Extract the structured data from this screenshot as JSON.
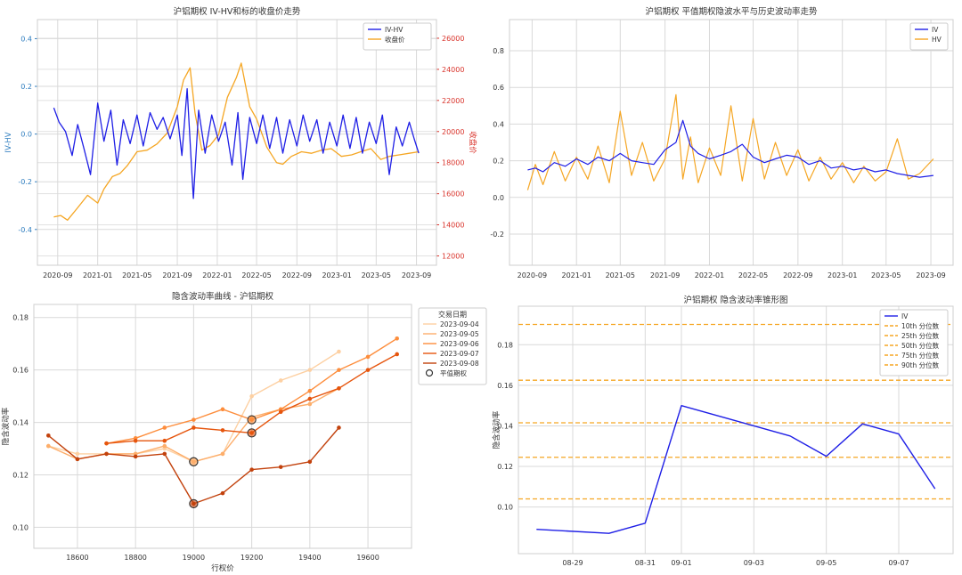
{
  "colors": {
    "iv": "#1f1fe6",
    "hv": "#f5a623",
    "price": "#f5a623",
    "left_axis": "#2e7dbf",
    "right_axis": "#d9332b",
    "grid": "#d9d9d9",
    "quantile": "#f5a623",
    "day_colors": [
      "#fdd0a2",
      "#fdae6b",
      "#fd8d3c",
      "#e6550d",
      "#c2410c"
    ]
  },
  "chart_data": [
    {
      "id": "iv_hv_price",
      "type": "line",
      "title": "沪铝期权 IV-HV和标的收盘价走势",
      "xlabel": "",
      "ylabel": "IV-HV",
      "y2label": "收盘价",
      "x_ticks": [
        "2020-09",
        "2021-01",
        "2021-05",
        "2021-09",
        "2022-01",
        "2022-05",
        "2022-09",
        "2023-01",
        "2023-05",
        "2023-09"
      ],
      "x_range": [
        "2020-07",
        "2023-11"
      ],
      "ylim": [
        -0.55,
        0.48
      ],
      "y_ticks": [
        "0.4",
        "0.2",
        "0.0",
        "-0.2",
        "-0.4"
      ],
      "y_tick_values": [
        0.4,
        0.2,
        0.0,
        -0.2,
        -0.4
      ],
      "y2lim": [
        11400,
        27200
      ],
      "y2_ticks": [
        "26000",
        "24000",
        "22000",
        "20000",
        "18000",
        "16000",
        "14000",
        "12000"
      ],
      "y2_tick_values": [
        26000,
        24000,
        22000,
        20000,
        18000,
        16000,
        14000,
        12000
      ],
      "legend": "top-right",
      "series": [
        {
          "name": "IV-HV",
          "axis": "left",
          "dates": [
            "2020-08-20",
            "2020-09-05",
            "2020-09-25",
            "2020-10-15",
            "2020-11-01",
            "2020-11-20",
            "2020-12-10",
            "2021-01-01",
            "2021-01-20",
            "2021-02-10",
            "2021-03-01",
            "2021-03-20",
            "2021-04-10",
            "2021-05-01",
            "2021-05-20",
            "2021-06-10",
            "2021-07-01",
            "2021-07-20",
            "2021-08-10",
            "2021-09-01",
            "2021-09-15",
            "2021-10-01",
            "2021-10-15",
            "2021-10-20",
            "2021-11-05",
            "2021-11-25",
            "2021-12-15",
            "2022-01-05",
            "2022-01-25",
            "2022-02-15",
            "2022-03-05",
            "2022-03-20",
            "2022-04-10",
            "2022-05-01",
            "2022-05-20",
            "2022-06-10",
            "2022-07-01",
            "2022-07-20",
            "2022-08-10",
            "2022-09-01",
            "2022-09-20",
            "2022-10-10",
            "2022-11-01",
            "2022-11-20",
            "2022-12-10",
            "2023-01-01",
            "2023-01-20",
            "2023-02-10",
            "2023-03-01",
            "2023-03-20",
            "2023-04-10",
            "2023-05-01",
            "2023-05-20",
            "2023-06-10",
            "2023-07-01",
            "2023-07-20",
            "2023-08-10",
            "2023-08-25",
            "2023-09-08"
          ],
          "values": [
            0.11,
            0.05,
            0.01,
            -0.09,
            0.04,
            -0.06,
            -0.17,
            0.13,
            -0.03,
            0.1,
            -0.13,
            0.06,
            -0.04,
            0.08,
            -0.05,
            0.09,
            0.02,
            0.07,
            -0.02,
            0.08,
            -0.09,
            0.19,
            -0.15,
            -0.27,
            0.1,
            -0.08,
            0.08,
            -0.03,
            0.05,
            -0.13,
            0.09,
            -0.19,
            0.07,
            -0.04,
            0.08,
            -0.06,
            0.07,
            -0.08,
            0.06,
            -0.05,
            0.08,
            -0.03,
            0.06,
            -0.08,
            0.05,
            -0.05,
            0.08,
            -0.06,
            0.07,
            -0.08,
            0.05,
            -0.04,
            0.08,
            -0.17,
            0.03,
            -0.05,
            0.05,
            -0.02,
            -0.08
          ]
        },
        {
          "name": "收盘价",
          "axis": "right",
          "dates": [
            "2020-08-20",
            "2020-09-10",
            "2020-10-01",
            "2020-11-01",
            "2020-12-01",
            "2021-01-01",
            "2021-01-20",
            "2021-02-15",
            "2021-03-10",
            "2021-04-01",
            "2021-05-01",
            "2021-06-01",
            "2021-07-01",
            "2021-08-01",
            "2021-09-01",
            "2021-09-20",
            "2021-10-10",
            "2021-10-25",
            "2021-11-15",
            "2021-12-10",
            "2022-01-05",
            "2022-02-01",
            "2022-03-01",
            "2022-03-15",
            "2022-04-10",
            "2022-05-01",
            "2022-06-01",
            "2022-07-01",
            "2022-07-20",
            "2022-08-15",
            "2022-09-15",
            "2022-10-15",
            "2022-11-15",
            "2022-12-15",
            "2023-01-15",
            "2023-02-15",
            "2023-03-15",
            "2023-04-15",
            "2023-05-15",
            "2023-06-10",
            "2023-07-10",
            "2023-08-10",
            "2023-09-08"
          ],
          "values": [
            14500,
            14600,
            14300,
            15100,
            15900,
            15400,
            16300,
            17100,
            17300,
            17800,
            18700,
            18800,
            19200,
            19900,
            21600,
            23300,
            24100,
            21200,
            18800,
            19100,
            19800,
            22200,
            23500,
            24400,
            21600,
            20800,
            19000,
            18000,
            17900,
            18400,
            18700,
            18600,
            18800,
            18900,
            18400,
            18500,
            18700,
            18900,
            18200,
            18400,
            18500,
            18600,
            18700
          ]
        }
      ]
    },
    {
      "id": "atm_iv_hv",
      "type": "line",
      "title": "沪铝期权 平值期权隐波水平与历史波动率走势",
      "xlabel": "",
      "ylabel": "",
      "x_ticks": [
        "2020-09",
        "2021-01",
        "2021-05",
        "2021-09",
        "2022-01",
        "2022-05",
        "2022-09",
        "2023-01",
        "2023-05",
        "2023-09"
      ],
      "x_range": [
        "2020-07",
        "2023-11"
      ],
      "ylim": [
        -0.37,
        0.97
      ],
      "y_ticks": [
        "0.8",
        "0.6",
        "0.4",
        "0.2",
        "0.0",
        "-0.2"
      ],
      "y_tick_values": [
        0.8,
        0.6,
        0.4,
        0.2,
        0.0,
        -0.2
      ],
      "legend": "top-right",
      "series": [
        {
          "name": "IV",
          "dates": [
            "2020-08-20",
            "2020-09-10",
            "2020-10-01",
            "2020-11-01",
            "2020-12-01",
            "2021-01-01",
            "2021-02-01",
            "2021-03-01",
            "2021-04-01",
            "2021-05-01",
            "2021-06-01",
            "2021-07-01",
            "2021-08-01",
            "2021-09-01",
            "2021-10-01",
            "2021-10-20",
            "2021-11-10",
            "2021-12-01",
            "2022-01-01",
            "2022-02-01",
            "2022-03-01",
            "2022-04-01",
            "2022-05-01",
            "2022-06-01",
            "2022-07-01",
            "2022-08-01",
            "2022-09-01",
            "2022-10-01",
            "2022-11-01",
            "2022-12-01",
            "2023-01-01",
            "2023-02-01",
            "2023-03-01",
            "2023-04-01",
            "2023-05-01",
            "2023-06-01",
            "2023-07-01",
            "2023-08-01",
            "2023-09-08"
          ],
          "values": [
            0.15,
            0.16,
            0.14,
            0.19,
            0.17,
            0.21,
            0.18,
            0.22,
            0.2,
            0.24,
            0.2,
            0.19,
            0.18,
            0.26,
            0.3,
            0.42,
            0.28,
            0.24,
            0.21,
            0.23,
            0.25,
            0.29,
            0.22,
            0.19,
            0.21,
            0.23,
            0.22,
            0.18,
            0.2,
            0.16,
            0.17,
            0.15,
            0.16,
            0.14,
            0.15,
            0.13,
            0.12,
            0.11,
            0.12
          ]
        },
        {
          "name": "HV",
          "dates": [
            "2020-08-20",
            "2020-09-10",
            "2020-10-01",
            "2020-11-01",
            "2020-12-01",
            "2021-01-01",
            "2021-02-01",
            "2021-03-01",
            "2021-04-01",
            "2021-05-01",
            "2021-06-01",
            "2021-07-01",
            "2021-08-01",
            "2021-09-01",
            "2021-10-01",
            "2021-10-20",
            "2021-11-10",
            "2021-12-01",
            "2022-01-01",
            "2022-02-01",
            "2022-03-01",
            "2022-04-01",
            "2022-05-01",
            "2022-06-01",
            "2022-07-01",
            "2022-08-01",
            "2022-09-01",
            "2022-10-01",
            "2022-11-01",
            "2022-12-01",
            "2023-01-01",
            "2023-02-01",
            "2023-03-01",
            "2023-04-01",
            "2023-05-01",
            "2023-06-01",
            "2023-07-01",
            "2023-08-01",
            "2023-09-08"
          ],
          "values": [
            0.04,
            0.18,
            0.07,
            0.25,
            0.09,
            0.22,
            0.1,
            0.28,
            0.08,
            0.47,
            0.12,
            0.3,
            0.09,
            0.21,
            0.56,
            0.1,
            0.33,
            0.08,
            0.27,
            0.12,
            0.5,
            0.09,
            0.43,
            0.1,
            0.3,
            0.12,
            0.26,
            0.09,
            0.22,
            0.1,
            0.19,
            0.08,
            0.17,
            0.09,
            0.14,
            0.32,
            0.1,
            0.13,
            0.21
          ]
        }
      ]
    },
    {
      "id": "iv_smile",
      "type": "line",
      "title": "隐含波动率曲线 - 沪铝期权",
      "xlabel": "行权价",
      "ylabel": "隐含波动率",
      "xlim": [
        18450,
        19750
      ],
      "x_ticks": [
        "18600",
        "18800",
        "19000",
        "19200",
        "19400",
        "19600"
      ],
      "x_tick_values": [
        18600,
        18800,
        19000,
        19200,
        19400,
        19600
      ],
      "ylim": [
        0.092,
        0.185
      ],
      "y_ticks": [
        "0.18",
        "0.16",
        "0.14",
        "0.12",
        "0.10"
      ],
      "y_tick_values": [
        0.18,
        0.16,
        0.14,
        0.12,
        0.1
      ],
      "legend_title": "交易日期",
      "legend": "top-right",
      "atm_label": "平值期权",
      "series": [
        {
          "name": "2023-09-04",
          "strikes": [
            18500,
            18600,
            18700,
            18800,
            18900,
            19000,
            19100,
            19200,
            19300,
            19400,
            19500
          ],
          "values": [
            0.131,
            0.128,
            0.128,
            0.128,
            0.13,
            0.125,
            0.128,
            0.15,
            0.156,
            0.16,
            0.167
          ],
          "atm_strike": 19000
        },
        {
          "name": "2023-09-05",
          "strikes": [
            18500,
            18600,
            18700,
            18800,
            18900,
            19000,
            19100,
            19200,
            19300,
            19400,
            19500
          ],
          "values": [
            0.131,
            0.126,
            0.128,
            0.128,
            0.131,
            0.125,
            0.128,
            0.142,
            0.145,
            0.147,
            0.153
          ],
          "atm_strike": 19000
        },
        {
          "name": "2023-09-06",
          "strikes": [
            18700,
            18800,
            18900,
            19000,
            19100,
            19200,
            19300,
            19400,
            19500,
            19600,
            19700
          ],
          "values": [
            0.132,
            0.134,
            0.138,
            0.141,
            0.145,
            0.141,
            0.145,
            0.152,
            0.16,
            0.165,
            0.172
          ],
          "atm_strike": 19200
        },
        {
          "name": "2023-09-07",
          "strikes": [
            18700,
            18800,
            18900,
            19000,
            19100,
            19200,
            19300,
            19400,
            19500,
            19600,
            19700
          ],
          "values": [
            0.132,
            0.133,
            0.133,
            0.138,
            0.137,
            0.136,
            0.144,
            0.149,
            0.153,
            0.16,
            0.166
          ],
          "atm_strike": 19200
        },
        {
          "name": "2023-09-08",
          "strikes": [
            18500,
            18600,
            18700,
            18800,
            18900,
            19000,
            19100,
            19200,
            19300,
            19400,
            19500
          ],
          "values": [
            0.135,
            0.126,
            0.128,
            0.127,
            0.128,
            0.109,
            0.113,
            0.122,
            0.123,
            0.125,
            0.138
          ],
          "atm_strike": 19000
        }
      ]
    },
    {
      "id": "iv_cone",
      "type": "line",
      "title": "沪铝期权 隐含波动率锥形图",
      "xlabel": "",
      "ylabel": "隐含波动率",
      "xlim": [
        "2023-08-27 12:00",
        "2023-09-08 12:00"
      ],
      "x_ticks": [
        "08-29",
        "08-31",
        "09-01",
        "09-03",
        "09-05",
        "09-07"
      ],
      "x_tick_dates": [
        "2023-08-29",
        "2023-08-31",
        "2023-09-01",
        "2023-09-03",
        "2023-09-05",
        "2023-09-07"
      ],
      "ylim": [
        0.077,
        0.199
      ],
      "y_ticks": [
        "0.18",
        "0.16",
        "0.14",
        "0.12",
        "0.10"
      ],
      "y_tick_values": [
        0.18,
        0.16,
        0.14,
        0.12,
        0.1
      ],
      "legend": "top-right",
      "series": [
        {
          "name": "IV",
          "dates": [
            "2023-08-28",
            "2023-08-30",
            "2023-08-31",
            "2023-09-01",
            "2023-09-04",
            "2023-09-05",
            "2023-09-06",
            "2023-09-07",
            "2023-09-08"
          ],
          "values": [
            0.089,
            0.087,
            0.092,
            0.15,
            0.135,
            0.125,
            0.141,
            0.136,
            0.109
          ]
        }
      ],
      "quantiles": [
        {
          "name": "10th 分位数",
          "value": 0.104
        },
        {
          "name": "25th 分位数",
          "value": 0.1245
        },
        {
          "name": "50th 分位数",
          "value": 0.1415
        },
        {
          "name": "75th 分位数",
          "value": 0.1625
        },
        {
          "name": "90th 分位数",
          "value": 0.19
        }
      ]
    }
  ]
}
